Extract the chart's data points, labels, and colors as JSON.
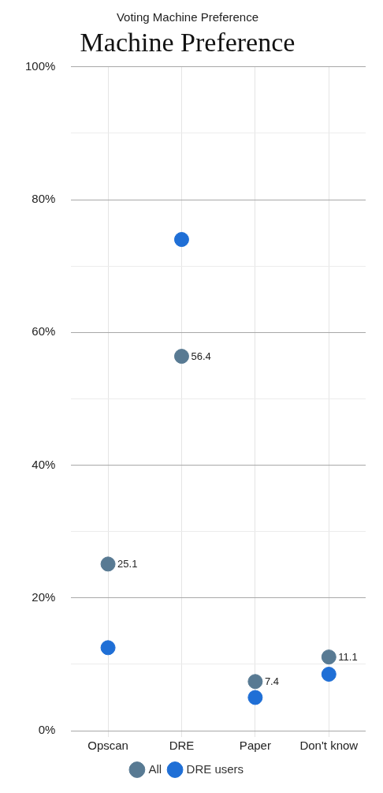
{
  "chart_data": {
    "type": "scatter",
    "title": "Voting Machine Preference",
    "subtitle": "Machine Preference",
    "categories": [
      "Opscan",
      "DRE",
      "Paper",
      "Don't know"
    ],
    "series": [
      {
        "name": "All",
        "color": "#587a93",
        "values": [
          25.1,
          56.4,
          7.4,
          11.1
        ],
        "value_labels": [
          "25.1",
          "56.4",
          "7.4",
          "11.1"
        ]
      },
      {
        "name": "DRE users",
        "color": "#1f6fd6",
        "values": [
          12.5,
          74,
          5,
          8.5
        ]
      }
    ],
    "ylim": [
      0,
      100
    ],
    "yticks": [
      {
        "value": 0,
        "label": "0%"
      },
      {
        "value": 10,
        "label": null
      },
      {
        "value": 20,
        "label": "20%"
      },
      {
        "value": 30,
        "label": null
      },
      {
        "value": 40,
        "label": "40%"
      },
      {
        "value": 50,
        "label": null
      },
      {
        "value": 60,
        "label": "60%"
      },
      {
        "value": 70,
        "label": null
      },
      {
        "value": 80,
        "label": "80%"
      },
      {
        "value": 90,
        "label": null
      },
      {
        "value": 100,
        "label": "100%"
      }
    ],
    "grid": true,
    "legend": "bottom",
    "marker": "circle"
  }
}
